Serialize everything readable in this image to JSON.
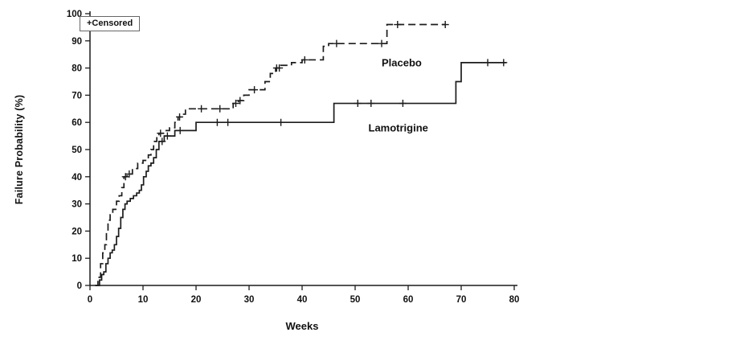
{
  "chart_data": {
    "type": "line",
    "title": "",
    "xlabel": "Weeks",
    "ylabel": "Failure Probability (%)",
    "legend_note": "+Censored",
    "xlim": [
      0,
      80
    ],
    "ylim": [
      0,
      100
    ],
    "xticks": [
      0,
      10,
      20,
      30,
      40,
      50,
      60,
      70,
      80
    ],
    "yticks": [
      0,
      10,
      20,
      30,
      40,
      50,
      60,
      70,
      80,
      90,
      100
    ],
    "grid": false,
    "line_color": "#1c1c1c",
    "step": true,
    "series": [
      {
        "name": "Placebo",
        "style": "dashed",
        "label_pos": [
          55,
          82
        ],
        "points": [
          [
            1,
            0
          ],
          [
            1.5,
            3
          ],
          [
            2,
            8
          ],
          [
            2.4,
            12
          ],
          [
            2.8,
            15
          ],
          [
            3.1,
            20
          ],
          [
            3.4,
            24
          ],
          [
            3.8,
            26
          ],
          [
            4.3,
            28
          ],
          [
            5,
            31
          ],
          [
            5.5,
            33
          ],
          [
            6,
            36
          ],
          [
            6.4,
            40
          ],
          [
            7,
            41
          ],
          [
            8,
            43
          ],
          [
            9,
            45
          ],
          [
            10,
            46
          ],
          [
            11,
            48
          ],
          [
            11.5,
            50
          ],
          [
            12,
            53
          ],
          [
            12.6,
            55
          ],
          [
            13,
            56
          ],
          [
            14,
            57
          ],
          [
            15,
            58
          ],
          [
            16,
            60
          ],
          [
            16.6,
            62
          ],
          [
            17.2,
            63
          ],
          [
            18,
            65
          ],
          [
            27,
            67
          ],
          [
            28,
            68
          ],
          [
            29,
            70
          ],
          [
            30,
            72
          ],
          [
            33,
            75
          ],
          [
            34,
            78
          ],
          [
            35,
            80
          ],
          [
            36,
            81
          ],
          [
            38,
            82
          ],
          [
            40,
            83
          ],
          [
            44,
            88
          ],
          [
            45,
            89
          ],
          [
            56,
            96
          ],
          [
            67,
            96
          ]
        ],
        "censored": [
          [
            6.7,
            40
          ],
          [
            7.4,
            41
          ],
          [
            13.3,
            56
          ],
          [
            16.9,
            62
          ],
          [
            21,
            65
          ],
          [
            24.5,
            65
          ],
          [
            27.5,
            67
          ],
          [
            28.3,
            68
          ],
          [
            31,
            72
          ],
          [
            35.2,
            80
          ],
          [
            35.7,
            80
          ],
          [
            40.5,
            83
          ],
          [
            46.5,
            89
          ],
          [
            55,
            89
          ],
          [
            58,
            96
          ],
          [
            67,
            96
          ]
        ]
      },
      {
        "name": "Lamotrigine",
        "style": "solid",
        "label_pos": [
          52.5,
          58
        ],
        "points": [
          [
            1,
            0
          ],
          [
            1.8,
            2
          ],
          [
            2.2,
            4
          ],
          [
            2.6,
            5
          ],
          [
            3,
            8
          ],
          [
            3.4,
            10
          ],
          [
            3.8,
            12
          ],
          [
            4.2,
            13
          ],
          [
            4.6,
            15
          ],
          [
            5,
            18
          ],
          [
            5.4,
            21
          ],
          [
            5.8,
            25
          ],
          [
            6.2,
            28
          ],
          [
            6.6,
            30
          ],
          [
            7,
            31
          ],
          [
            7.6,
            32
          ],
          [
            8.2,
            33
          ],
          [
            8.8,
            34
          ],
          [
            9.3,
            35
          ],
          [
            9.7,
            37
          ],
          [
            10.1,
            40
          ],
          [
            10.6,
            42
          ],
          [
            11,
            44
          ],
          [
            11.5,
            45
          ],
          [
            12,
            47
          ],
          [
            12.5,
            50
          ],
          [
            13,
            53
          ],
          [
            14,
            55
          ],
          [
            16,
            57
          ],
          [
            20,
            60
          ],
          [
            46,
            67
          ],
          [
            69,
            75
          ],
          [
            70,
            82
          ],
          [
            78.5,
            82
          ]
        ],
        "censored": [
          [
            13.6,
            53
          ],
          [
            14.6,
            55
          ],
          [
            17,
            57
          ],
          [
            24,
            60
          ],
          [
            26,
            60
          ],
          [
            36,
            60
          ],
          [
            50.5,
            67
          ],
          [
            53,
            67
          ],
          [
            59,
            67
          ],
          [
            75,
            82
          ],
          [
            78,
            82
          ]
        ]
      }
    ]
  }
}
